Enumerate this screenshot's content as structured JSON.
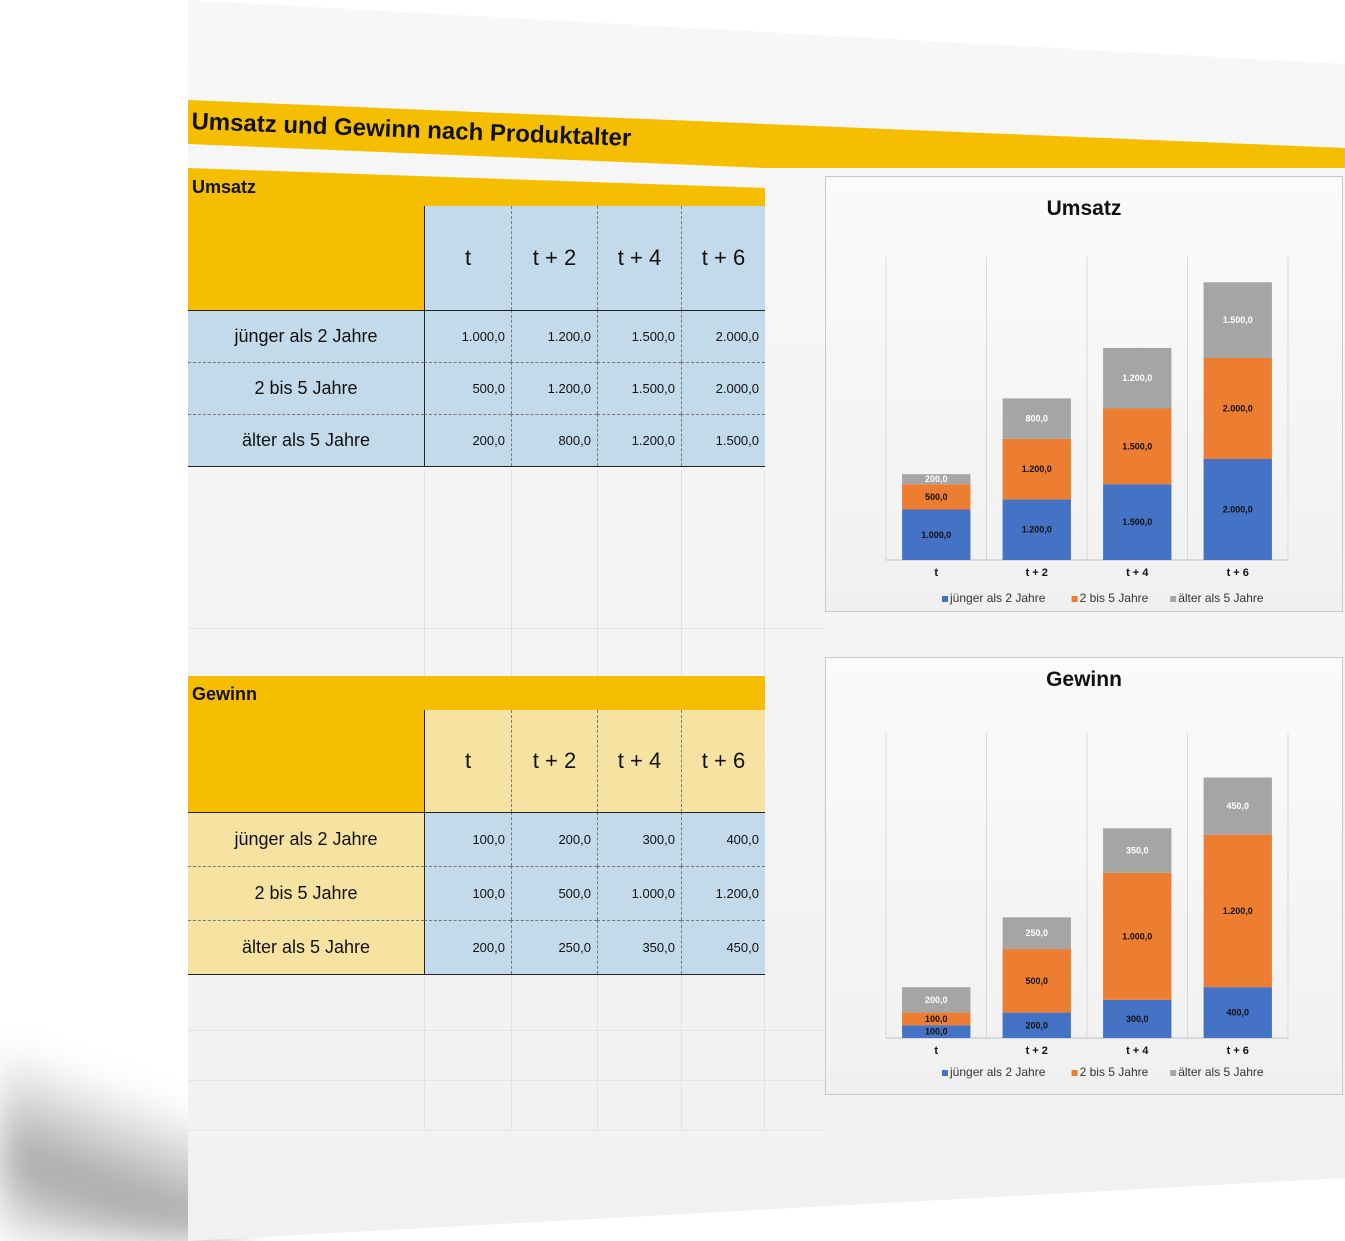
{
  "title": "Umsatz und Gewinn nach Produktalter",
  "umsatz_table": {
    "title": "Umsatz",
    "columns": [
      "t",
      "t + 2",
      "t + 4",
      "t + 6"
    ],
    "rows": [
      {
        "label": "jünger als 2 Jahre",
        "values": [
          "1.000,0",
          "1.200,0",
          "1.500,0",
          "2.000,0"
        ]
      },
      {
        "label": "2 bis 5 Jahre",
        "values": [
          "500,0",
          "1.200,0",
          "1.500,0",
          "2.000,0"
        ]
      },
      {
        "label": "älter als 5 Jahre",
        "values": [
          "200,0",
          "800,0",
          "1.200,0",
          "1.500,0"
        ]
      }
    ]
  },
  "gewinn_table": {
    "title": "Gewinn",
    "columns": [
      "t",
      "t + 2",
      "t + 4",
      "t + 6"
    ],
    "rows": [
      {
        "label": "jünger als 2 Jahre",
        "values": [
          "100,0",
          "200,0",
          "300,0",
          "400,0"
        ]
      },
      {
        "label": "2 bis 5 Jahre",
        "values": [
          "100,0",
          "500,0",
          "1.000,0",
          "1.200,0"
        ]
      },
      {
        "label": "älter als 5 Jahre",
        "values": [
          "200,0",
          "250,0",
          "350,0",
          "450,0"
        ]
      }
    ]
  },
  "colors": {
    "accent": "#f6be00",
    "blue_cell": "#c3daea",
    "yellow_cell": "#f6e3a1",
    "series": [
      "#4472c4",
      "#ed7d31",
      "#a5a5a5"
    ]
  },
  "chart_data": [
    {
      "type": "bar",
      "stacked": true,
      "title": "Umsatz",
      "categories": [
        "t",
        "t + 2",
        "t + 4",
        "t + 6"
      ],
      "series": [
        {
          "name": "jünger als 2 Jahre",
          "values": [
            1000,
            1200,
            1500,
            2000
          ],
          "labels": [
            "1.000,0",
            "1.200,0",
            "1.500,0",
            "2.000,0"
          ]
        },
        {
          "name": "2 bis 5 Jahre",
          "values": [
            500,
            1200,
            1500,
            2000
          ],
          "labels": [
            "500,0",
            "1.200,0",
            "1.500,0",
            "2.000,0"
          ]
        },
        {
          "name": "älter als 5 Jahre",
          "values": [
            200,
            800,
            1200,
            1500
          ],
          "labels": [
            "200,0",
            "800,0",
            "1.200,0",
            "1.500,0"
          ]
        }
      ],
      "ylim": [
        0,
        6000
      ],
      "grid": "vertical",
      "legend": "bottom"
    },
    {
      "type": "bar",
      "stacked": true,
      "title": "Gewinn",
      "categories": [
        "t",
        "t + 2",
        "t + 4",
        "t + 6"
      ],
      "series": [
        {
          "name": "jünger als 2 Jahre",
          "values": [
            100,
            200,
            300,
            400
          ],
          "labels": [
            "100,0",
            "200,0",
            "300,0",
            "400,0"
          ]
        },
        {
          "name": "2 bis 5 Jahre",
          "values": [
            100,
            500,
            1000,
            1200
          ],
          "labels": [
            "100,0",
            "500,0",
            "1.000,0",
            "1.200,0"
          ]
        },
        {
          "name": "älter als 5 Jahre",
          "values": [
            200,
            250,
            350,
            450
          ],
          "labels": [
            "200,0",
            "250,0",
            "350,0",
            "450,0"
          ]
        }
      ],
      "ylim": [
        0,
        2400
      ],
      "grid": "vertical",
      "legend": "bottom"
    }
  ]
}
